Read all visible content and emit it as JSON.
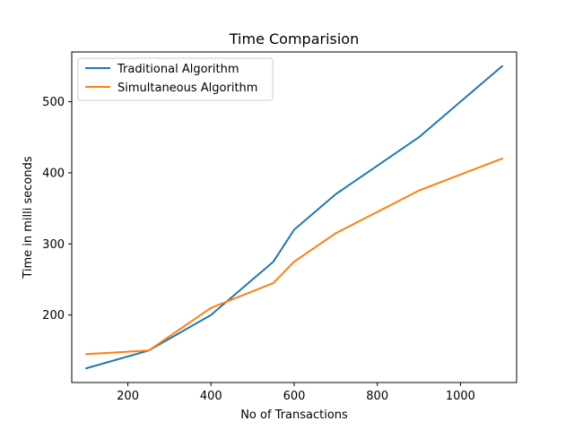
{
  "chart_data": {
    "type": "line",
    "title": "Time Comparision",
    "xlabel": "No of Transactions",
    "ylabel": "Time in milli seconds",
    "xlim": [
      65,
      1135
    ],
    "ylim": [
      105,
      570
    ],
    "xticks": [
      200,
      400,
      600,
      800,
      1000
    ],
    "yticks": [
      200,
      300,
      400,
      500
    ],
    "grid": false,
    "legend_position": "top-left",
    "series": [
      {
        "name": "Traditional Algorithm",
        "color": "#1f77b4",
        "x": [
          100,
          250,
          400,
          550,
          600,
          700,
          900,
          1100
        ],
        "y": [
          125,
          150,
          200,
          275,
          320,
          370,
          450,
          550
        ]
      },
      {
        "name": "Simultaneous Algorithm",
        "color": "#ff7f0e",
        "x": [
          100,
          250,
          400,
          550,
          600,
          700,
          900,
          1100
        ],
        "y": [
          145,
          150,
          210,
          245,
          275,
          315,
          375,
          420
        ]
      }
    ]
  }
}
